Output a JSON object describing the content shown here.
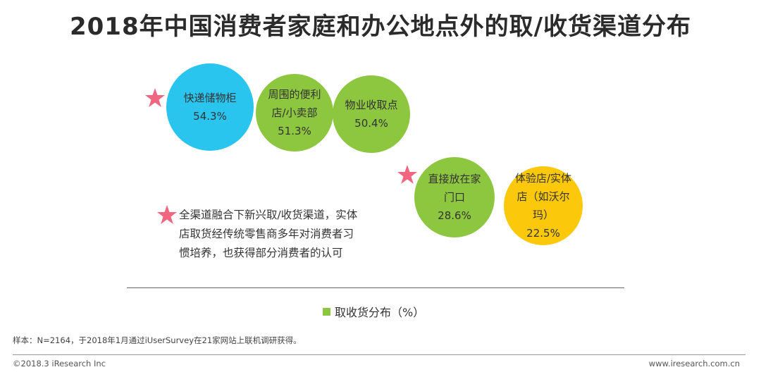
{
  "title": "2018年中国消费者家庭和办公地点外的取/收货渠道分布",
  "chart_data": {
    "type": "bubble",
    "unit": "%",
    "legend": "取收货分布（%）",
    "items": [
      {
        "label": "快递储物柜",
        "value_text": "54.3%",
        "value": 54.3,
        "color": "#29c5ee",
        "star": true
      },
      {
        "label": "周围的便利店/小卖部",
        "value_text": "51.3%",
        "value": 51.3,
        "color": "#8dc63f",
        "star": false
      },
      {
        "label": "物业收取点",
        "value_text": "50.4%",
        "value": 50.4,
        "color": "#8dc63f",
        "star": false
      },
      {
        "label": "直接放在家门口",
        "value_text": "28.6%",
        "value": 28.6,
        "color": "#8dc63f",
        "star": true
      },
      {
        "label": "体验店/实体店（如沃尔玛）",
        "value_text": "22.5%",
        "value": 22.5,
        "color": "#fbc80c",
        "star": false
      }
    ]
  },
  "note": "全渠道融合下新兴取/收货渠道，实体店取货经传统零售商多年对消费者习惯培养，也获得部分消费者的认可",
  "legend_color": "#8dc63f",
  "star_color": "#f06680",
  "sample_text": "样本：N=2164，于2018年1月通过iUserSurvey在21家网站上联机调研获得。",
  "copyright": "©2018.3 iResearch Inc",
  "website": "www.iresearch.com.cn"
}
